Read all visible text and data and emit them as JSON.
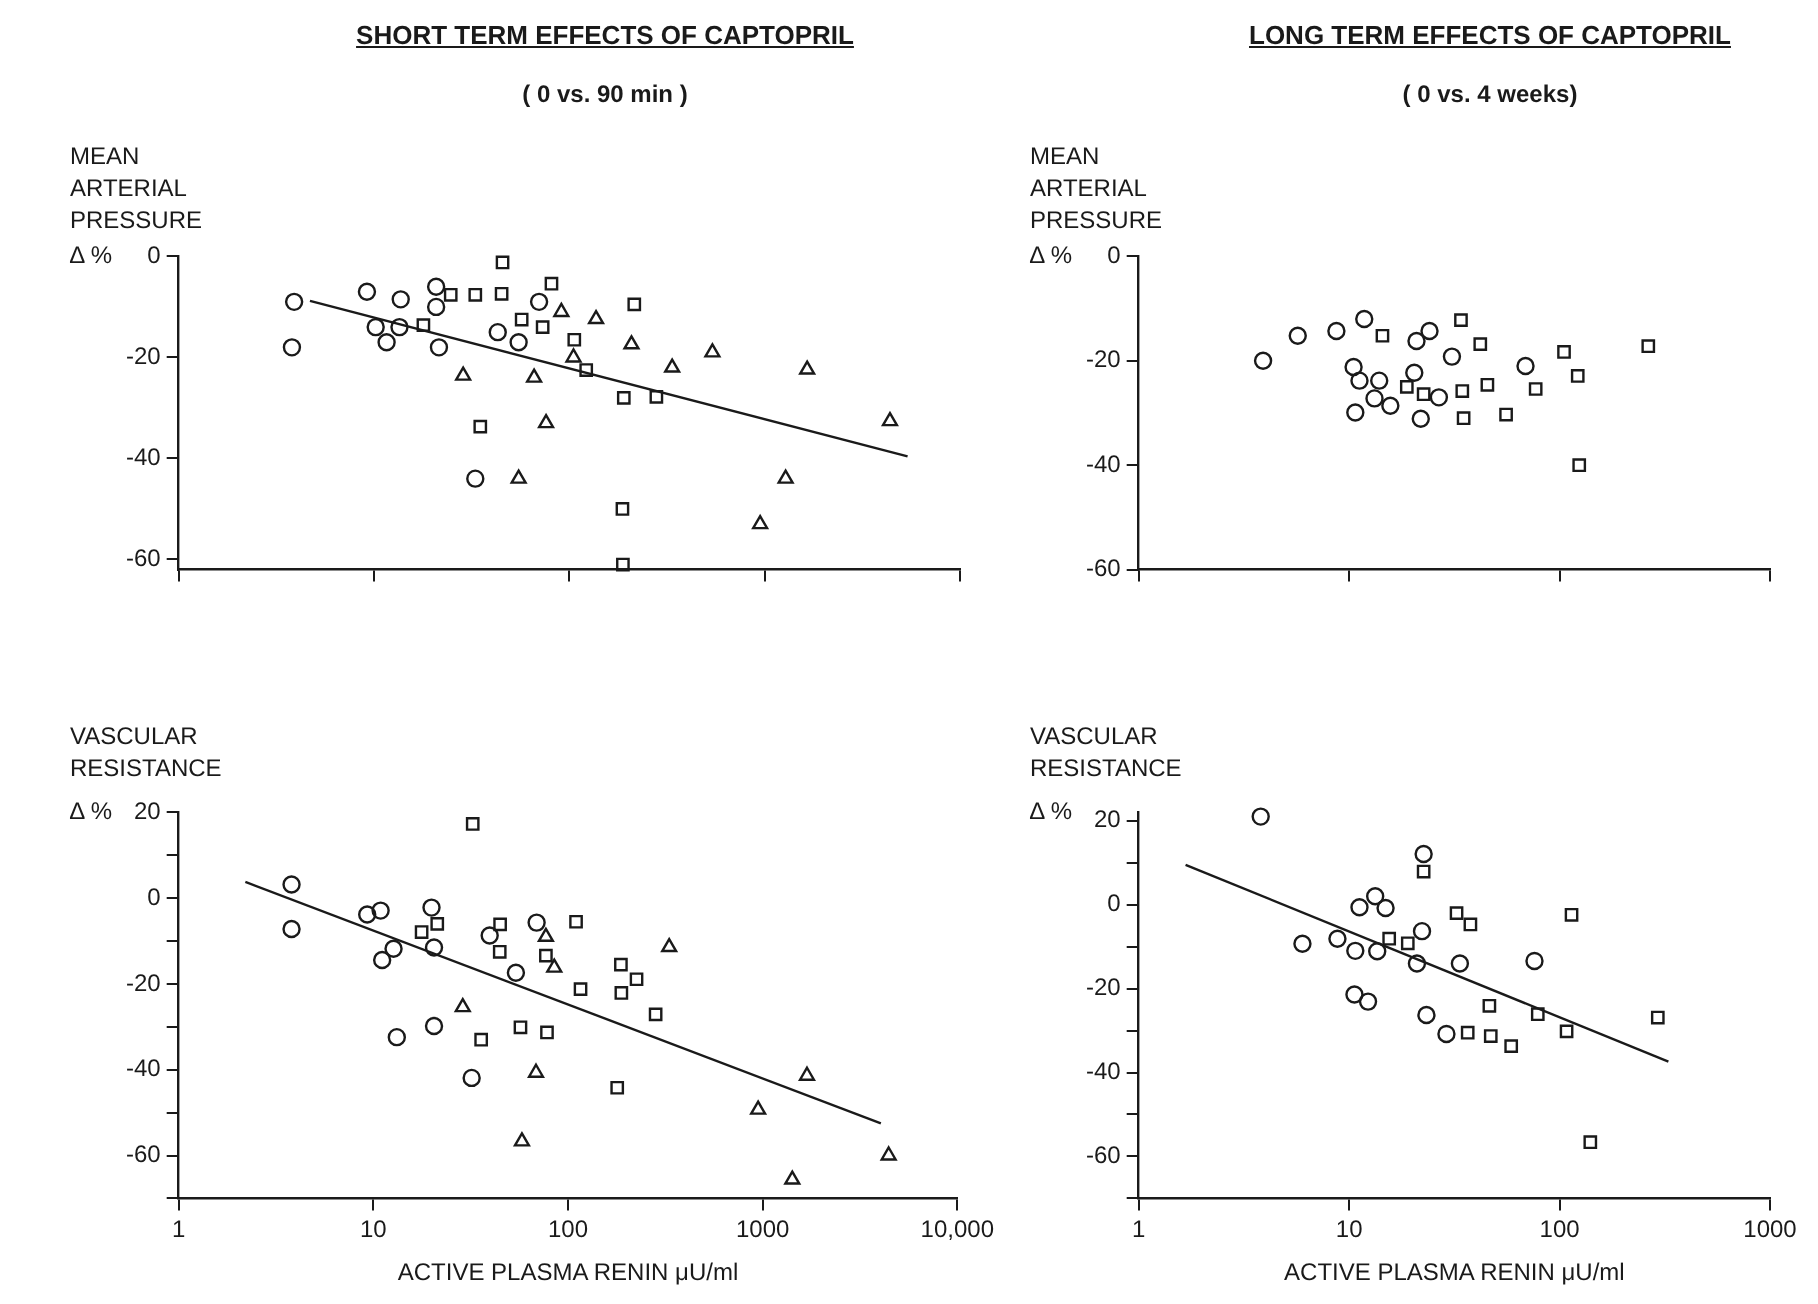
{
  "chart_data": [
    {
      "type": "scatter",
      "title": "SHORT TERM EFFECTS OF CAPTOPRIL",
      "subtitle": "( 0 vs. 90 min )",
      "ylabel": "MEAN ARTERIAL PRESSURE",
      "annotations": [
        "Δ %"
      ],
      "log": "x",
      "xlim": [
        1,
        10000
      ],
      "xticks": [
        1,
        10,
        100,
        1000,
        10000
      ],
      "ylim": [
        -62,
        0
      ],
      "yticks": [
        -60,
        -40,
        -20,
        0
      ],
      "tick_labels": "y",
      "grid": false,
      "legend": false,
      "series": [
        {
          "type": "scatter",
          "marker": "circle",
          "color": "#1a1a1a",
          "x": [
            3.9,
            3.8,
            9.2,
            10.2,
            11.6,
            13.7,
            13.5,
            20.8,
            20.8,
            21.5,
            33,
            43,
            55,
            70
          ],
          "values": [
            -9,
            -18,
            -7,
            -14,
            -17,
            -8.5,
            -14,
            -6,
            -10,
            -18,
            -44,
            -15,
            -17,
            -9
          ]
        },
        {
          "type": "scatter",
          "marker": "square",
          "color": "#1a1a1a",
          "x": [
            17.9,
            24.7,
            33,
            45.5,
            45,
            35,
            57,
            73,
            81,
            106,
            122,
            190,
            215,
            187,
            188,
            279
          ],
          "values": [
            -13.6,
            -7.6,
            -7.6,
            -1.2,
            -7.4,
            -33.7,
            -12.5,
            -14,
            -5.4,
            -16.5,
            -22.5,
            -28,
            -9.5,
            -50,
            -61,
            -27.8
          ]
        },
        {
          "type": "scatter",
          "marker": "triangle",
          "color": "#1a1a1a",
          "x": [
            28.6,
            55,
            66,
            76,
            91,
            105,
            137,
            208,
            336,
            540,
            948,
            1280,
            1650,
            4380
          ],
          "values": [
            -23.6,
            -44,
            -24,
            -33,
            -11,
            -20,
            -12.4,
            -17.4,
            -22,
            -19,
            -53,
            -44,
            -22.4,
            -32.6
          ]
        },
        {
          "type": "line",
          "marker": "none",
          "line_style": "solid",
          "color": "#1a1a1a",
          "x": [
            4.7,
            5390
          ],
          "values": [
            -8.8,
            -39.6
          ]
        }
      ]
    },
    {
      "type": "scatter",
      "title": "LONG TERM EFFECTS OF CAPTOPRIL",
      "subtitle": "( 0 vs. 4 weeks)",
      "ylabel": "MEAN ARTERIAL PRESSURE",
      "annotations": [
        "Δ %"
      ],
      "log": "x",
      "xlim": [
        1,
        1000
      ],
      "xticks": [
        1,
        10,
        100,
        1000
      ],
      "ylim": [
        -60,
        0
      ],
      "yticks": [
        -60,
        -40,
        -20,
        0
      ],
      "tick_labels": "y",
      "grid": false,
      "legend": false,
      "series": [
        {
          "type": "scatter",
          "marker": "circle",
          "color": "#1a1a1a",
          "x": [
            3.9,
            5.7,
            8.7,
            11.8,
            10.5,
            11.2,
            10.7,
            13.2,
            13.9,
            15.7,
            20.4,
            20.9,
            24.1,
            21.9,
            26.7,
            30.8,
            68.9
          ],
          "values": [
            -20,
            -15.2,
            -14.3,
            -12,
            -21.2,
            -23.8,
            -29.9,
            -27.2,
            -23.8,
            -28.6,
            -22.3,
            -16.2,
            -14.3,
            -31.1,
            -27,
            -19.2,
            -21
          ]
        },
        {
          "type": "scatter",
          "marker": "square",
          "color": "#1a1a1a",
          "x": [
            14.4,
            18.8,
            22.6,
            34,
            34.5,
            35,
            42,
            45.4,
            55.7,
            77,
            105,
            122,
            124,
            264
          ],
          "values": [
            -15.2,
            -25,
            -26.4,
            -12.2,
            -25.8,
            -31,
            -16.8,
            -24.6,
            -30.3,
            -25.4,
            -18.3,
            -22.9,
            -40,
            -17.2
          ]
        }
      ]
    },
    {
      "type": "scatter",
      "xlabel": "ACTIVE PLASMA RENIN μU/ml",
      "ylabel": "VASCULAR RESISTANCE",
      "annotations": [
        "Δ %"
      ],
      "log": "x",
      "xlim": [
        1,
        10000
      ],
      "xticks": [
        1,
        10,
        100,
        1000,
        {
          "value": 10000,
          "label": "10,000"
        }
      ],
      "ylim": [
        -70,
        20
      ],
      "yticks": [
        {
          "value": -70,
          "label": null
        },
        -60,
        {
          "value": -50,
          "label": null
        },
        -40,
        {
          "value": -30,
          "label": null
        },
        -20,
        {
          "value": -10,
          "label": null
        },
        0,
        {
          "value": 10,
          "label": null
        },
        20
      ],
      "grid": false,
      "legend": false,
      "series": [
        {
          "type": "scatter",
          "marker": "circle",
          "color": "#1a1a1a",
          "x": [
            3.8,
            3.8,
            9.3,
            10.9,
            11.1,
            12.7,
            13.2,
            19.9,
            20.5,
            20.5,
            32,
            39.6,
            54,
            69
          ],
          "values": [
            3.2,
            -7.2,
            -3.8,
            -2.9,
            -14.4,
            -11.8,
            -32.4,
            -2.2,
            -11.5,
            -29.8,
            -41.9,
            -8.7,
            -17.4,
            -5.7
          ]
        },
        {
          "type": "scatter",
          "marker": "square",
          "color": "#1a1a1a",
          "x": [
            32.4,
            17.7,
            21.3,
            35.8,
            44.8,
            44.6,
            57,
            77,
            78,
            110,
            116,
            187,
            188,
            225,
            282,
            179
          ],
          "values": [
            17.3,
            -7.9,
            -6,
            -33,
            -6.1,
            -12.5,
            -30.1,
            -13.4,
            -31.3,
            -5.5,
            -21.2,
            -15.5,
            -22.1,
            -18.9,
            -27.1,
            -44.2
          ]
        },
        {
          "type": "scatter",
          "marker": "triangle",
          "color": "#1a1a1a",
          "x": [
            28.8,
            58,
            68.5,
            77,
            85,
            331,
            948,
            1420,
            1690,
            4440
          ],
          "values": [
            -25.4,
            -56.7,
            -40.7,
            -9,
            -16.2,
            -11.4,
            -49.3,
            -65.6,
            -41.4,
            -60
          ]
        },
        {
          "type": "line",
          "marker": "none",
          "line_style": "solid",
          "color": "#1a1a1a",
          "x": [
            2.2,
            4050
          ],
          "values": [
            3.8,
            -52.5
          ]
        }
      ]
    },
    {
      "type": "scatter",
      "xlabel": "ACTIVE PLASMA RENIN μU/ml",
      "ylabel": "VASCULAR RESISTANCE",
      "annotations": [
        "Δ %"
      ],
      "log": "x",
      "xlim": [
        1,
        1000
      ],
      "xticks": [
        1,
        10,
        100,
        1000
      ],
      "ylim": [
        -70,
        22
      ],
      "yticks": [
        {
          "value": -70,
          "label": null
        },
        -60,
        {
          "value": -50,
          "label": null
        },
        -40,
        {
          "value": -30,
          "label": null
        },
        -20,
        {
          "value": -10,
          "label": null
        },
        0,
        {
          "value": 10,
          "label": null
        },
        20
      ],
      "grid": false,
      "legend": false,
      "series": [
        {
          "type": "scatter",
          "marker": "circle",
          "color": "#1a1a1a",
          "x": [
            3.8,
            6,
            8.8,
            10.7,
            11.2,
            13.3,
            14.9,
            13.6,
            10.6,
            12.3,
            22.6,
            22.2,
            21,
            23.3,
            29,
            33.6,
            76
          ],
          "values": [
            21,
            -9.3,
            -8.1,
            -11,
            -0.6,
            2,
            -0.8,
            -11.1,
            -21.4,
            -23.1,
            12.1,
            -6.3,
            -14,
            -26.3,
            -30.8,
            -14,
            -13.4
          ]
        },
        {
          "type": "scatter",
          "marker": "square",
          "color": "#1a1a1a",
          "x": [
            22.6,
            15.5,
            19,
            32.4,
            37.7,
            36.6,
            46.4,
            47.1,
            58.9,
            78.8,
            108,
            114,
            293,
            140
          ],
          "values": [
            7.9,
            -8.1,
            -9.2,
            -2,
            -4.7,
            -30.5,
            -24.1,
            -31.3,
            -33.7,
            -26.1,
            -30.2,
            -2.4,
            -26.9,
            -56.6
          ]
        },
        {
          "type": "line",
          "marker": "none",
          "line_style": "solid",
          "color": "#1a1a1a",
          "x": [
            1.67,
            329
          ],
          "values": [
            9.5,
            -37.4
          ]
        }
      ]
    }
  ]
}
